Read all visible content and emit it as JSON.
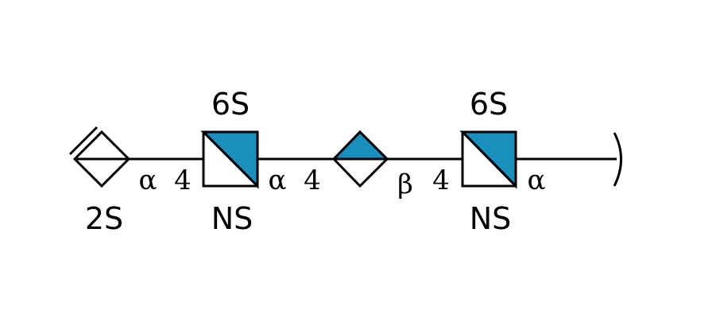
{
  "colors": {
    "glcn_fill": "#1a8fbd",
    "stroke": "#000000",
    "background": "#ffffff"
  },
  "residues": [
    {
      "symbol": "diamond-half-crossed",
      "top_label": "",
      "bottom_label": "2S"
    },
    {
      "symbol": "square-diagonal-filled",
      "top_label": "6S",
      "bottom_label": "NS"
    },
    {
      "symbol": "diamond-top-filled",
      "top_label": "",
      "bottom_label": ""
    },
    {
      "symbol": "square-diagonal-filled",
      "top_label": "6S",
      "bottom_label": "NS"
    }
  ],
  "linkages": [
    {
      "anomer": "α",
      "position": "4"
    },
    {
      "anomer": "α",
      "position": "4"
    },
    {
      "anomer": "β",
      "position": "4"
    },
    {
      "anomer": "α",
      "position": ""
    }
  ]
}
